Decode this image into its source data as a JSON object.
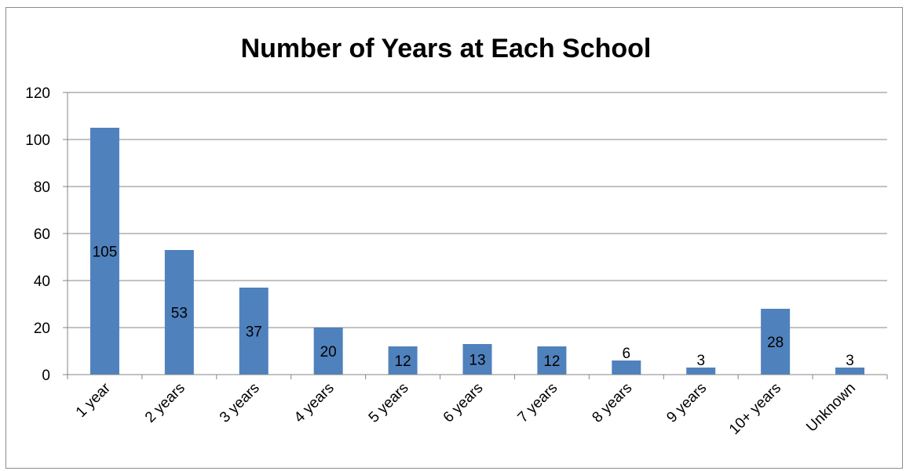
{
  "chart_data": {
    "type": "bar",
    "title": "Number of Years at Each School",
    "categories": [
      "1 year",
      "2 years",
      "3 years",
      "4 years",
      "5 years",
      "6 years",
      "7 years",
      "8 years",
      "9 years",
      "10+ years",
      "Unknown"
    ],
    "values": [
      105,
      53,
      37,
      20,
      12,
      13,
      12,
      6,
      3,
      28,
      3
    ],
    "data_labels": [
      "105",
      "53",
      "37",
      "20",
      "12",
      "13",
      "12",
      "6",
      "3",
      "28",
      "3"
    ],
    "ylim": [
      0,
      120
    ],
    "yticks": [
      0,
      20,
      40,
      60,
      80,
      100,
      120
    ],
    "ytick_labels": [
      "0",
      "20",
      "40",
      "60",
      "80",
      "100",
      "120"
    ],
    "grid": true,
    "legend": "none",
    "bar_color": "#4f81bd"
  }
}
